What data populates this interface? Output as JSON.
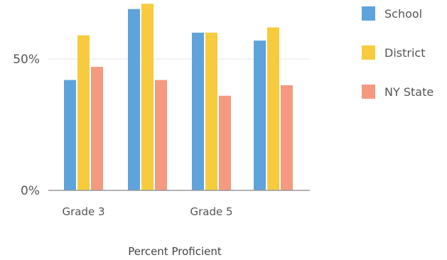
{
  "chart_data": {
    "type": "bar",
    "title": "",
    "xlabel": "Percent Proficient",
    "ylabel": "",
    "categories": [
      "Grade 3",
      "",
      "Grade 5",
      ""
    ],
    "series": [
      {
        "name": "School",
        "color": "#5ea3dc",
        "values": [
          42,
          69,
          60,
          57
        ]
      },
      {
        "name": "District",
        "color": "#f6cc3e",
        "values": [
          59,
          71,
          60,
          62
        ]
      },
      {
        "name": "NY State",
        "color": "#f59a80",
        "values": [
          47,
          42,
          36,
          40
        ]
      }
    ],
    "ylim": [
      0,
      75
    ],
    "y_ticks": [
      {
        "value": 0,
        "label": "0%"
      },
      {
        "value": 50,
        "label": "50%"
      }
    ],
    "grid": true,
    "legend_position": "right"
  }
}
